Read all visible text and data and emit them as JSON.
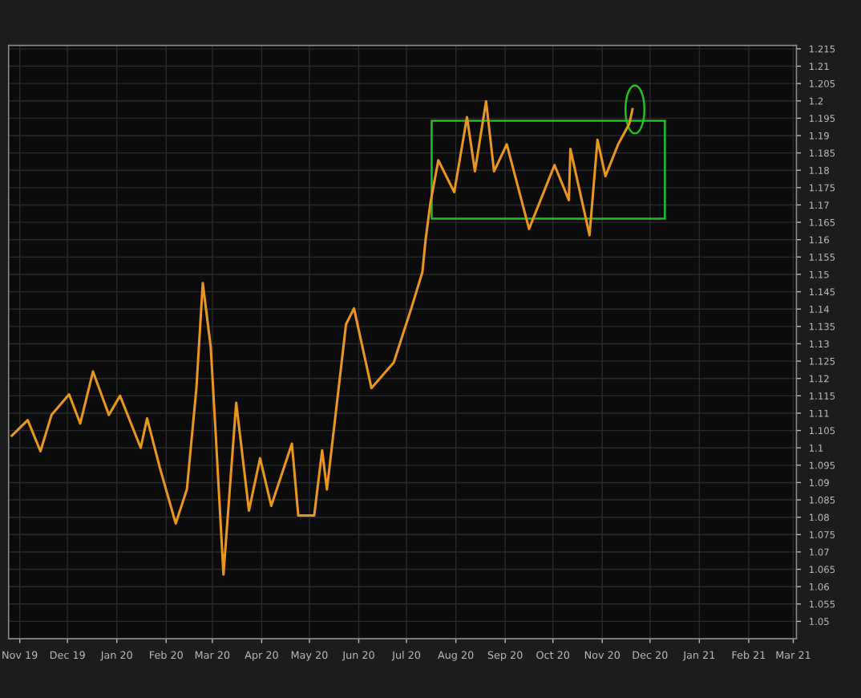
{
  "chart_data": {
    "type": "line",
    "x": [
      "2019-11-11",
      "2019-11-21",
      "2019-11-29",
      "2019-12-06",
      "2019-12-17",
      "2019-12-24",
      "2020-01-01",
      "2020-01-11",
      "2020-01-18",
      "2020-01-31",
      "2020-02-04",
      "2020-02-12",
      "2020-02-22",
      "2020-02-29",
      "2020-03-06",
      "2020-03-10",
      "2020-03-15",
      "2020-03-18",
      "2020-03-23",
      "2020-03-31",
      "2020-04-08",
      "2020-04-15",
      "2020-04-22",
      "2020-05-05",
      "2020-05-09",
      "2020-05-19",
      "2020-05-24",
      "2020-05-27",
      "2020-06-08",
      "2020-06-13",
      "2020-06-24",
      "2020-07-08",
      "2020-07-19",
      "2020-07-26",
      "2020-07-28",
      "2020-07-31",
      "2020-08-05",
      "2020-08-15",
      "2020-08-23",
      "2020-08-28",
      "2020-09-04",
      "2020-09-09",
      "2020-09-17",
      "2020-10-01",
      "2020-10-17",
      "2020-10-26",
      "2020-10-27",
      "2020-11-08",
      "2020-11-13",
      "2020-11-18",
      "2020-11-26",
      "2020-12-03",
      "2020-12-05"
    ],
    "series": [
      {
        "color": "#e8961e",
        "values": [
          1.1035,
          1.108,
          1.099,
          1.1095,
          1.1154,
          1.107,
          1.122,
          1.1095,
          1.115,
          1.1,
          1.1085,
          1.0943,
          1.0782,
          1.088,
          1.1172,
          1.1475,
          1.129,
          1.105,
          1.0635,
          1.113,
          1.0819,
          1.097,
          1.0833,
          1.1012,
          1.0805,
          1.0805,
          1.0993,
          1.088,
          1.1356,
          1.1402,
          1.1172,
          1.1246,
          1.1402,
          1.1507,
          1.16,
          1.1705,
          1.1829,
          1.1737,
          1.1953,
          1.1797,
          1.1999,
          1.1797,
          1.1875,
          1.1631,
          1.1815,
          1.1714,
          1.1861,
          1.1613,
          1.1888,
          1.1783,
          1.1875,
          1.1934,
          1.1976
        ]
      }
    ],
    "xlim": [
      "2019-11-09",
      "2021-03-18"
    ],
    "xticks": [
      {
        "value": "2019-11-16",
        "label": "Nov 19"
      },
      {
        "value": "2019-12-16",
        "label": "Dec 19"
      },
      {
        "value": "2020-01-16",
        "label": "Jan 20"
      },
      {
        "value": "2020-02-16",
        "label": "Feb 20"
      },
      {
        "value": "2020-03-16",
        "label": "Mar 20"
      },
      {
        "value": "2020-04-16",
        "label": "Apr 20"
      },
      {
        "value": "2020-05-16",
        "label": "May 20"
      },
      {
        "value": "2020-06-16",
        "label": "Jun 20"
      },
      {
        "value": "2020-07-16",
        "label": "Jul 20"
      },
      {
        "value": "2020-08-16",
        "label": "Aug 20"
      },
      {
        "value": "2020-09-16",
        "label": "Sep 20"
      },
      {
        "value": "2020-10-16",
        "label": "Oct 20"
      },
      {
        "value": "2020-11-16",
        "label": "Nov 20"
      },
      {
        "value": "2020-12-16",
        "label": "Dec 20"
      },
      {
        "value": "2021-01-16",
        "label": "Jan 21"
      },
      {
        "value": "2021-02-16",
        "label": "Feb 21"
      },
      {
        "value": "2021-03-16",
        "label": "Mar 21"
      }
    ],
    "ylim": [
      1.045,
      1.216
    ],
    "yticks": [
      1.05,
      1.055,
      1.06,
      1.065,
      1.07,
      1.075,
      1.08,
      1.085,
      1.09,
      1.095,
      1.1,
      1.105,
      1.11,
      1.115,
      1.12,
      1.125,
      1.13,
      1.135,
      1.14,
      1.145,
      1.15,
      1.155,
      1.16,
      1.165,
      1.17,
      1.175,
      1.18,
      1.185,
      1.19,
      1.195,
      1.2,
      1.205,
      1.21,
      1.215
    ],
    "grid": true,
    "line_style": "solid",
    "marker": "none"
  }
}
